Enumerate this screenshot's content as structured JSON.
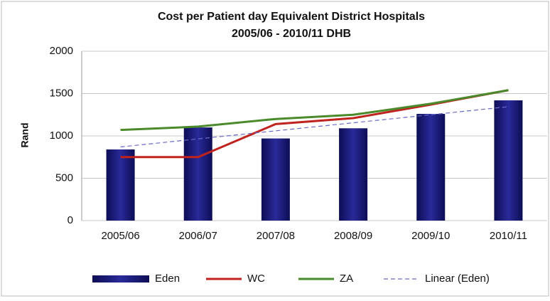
{
  "chart_data": {
    "type": "bar_line",
    "title": "Cost per Patient day Equivalent District Hospitals",
    "subtitle": "2005/06 - 2010/11 DHB",
    "y_label": "Rand",
    "categories": [
      "2005/06",
      "2006/07",
      "2007/08",
      "2008/09",
      "2009/10",
      "2010/11"
    ],
    "series": [
      {
        "name": "Eden",
        "type": "bar",
        "color": "#1c1c78",
        "values": [
          840,
          1100,
          970,
          1090,
          1260,
          1420
        ]
      },
      {
        "name": "WC",
        "type": "line",
        "color": "#c0231e",
        "values": [
          750,
          750,
          1140,
          1210,
          1370,
          1540
        ]
      },
      {
        "name": "ZA",
        "type": "line",
        "color": "#4a8a2a",
        "values": [
          1070,
          1110,
          1200,
          1250,
          1380,
          1540
        ]
      },
      {
        "name": "Linear (Eden)",
        "type": "dashed",
        "color": "#6a6ac8",
        "values": [
          870,
          965,
          1060,
          1155,
          1250,
          1345
        ]
      }
    ],
    "ylim": [
      0,
      2000
    ],
    "yticks": [
      0,
      500,
      1000,
      1500,
      2000
    ],
    "grid": true
  }
}
